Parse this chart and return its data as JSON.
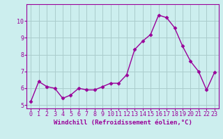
{
  "x": [
    0,
    1,
    2,
    3,
    4,
    5,
    6,
    7,
    8,
    9,
    10,
    11,
    12,
    13,
    14,
    15,
    16,
    17,
    18,
    19,
    20,
    21,
    22,
    23
  ],
  "y": [
    5.2,
    6.4,
    6.1,
    6.0,
    5.4,
    5.6,
    6.0,
    5.9,
    5.9,
    6.1,
    6.3,
    6.3,
    6.8,
    8.3,
    8.8,
    9.2,
    10.35,
    10.2,
    9.6,
    8.5,
    7.6,
    7.0,
    5.9,
    6.95
  ],
  "xlabel": "Windchill (Refroidissement éolien,°C)",
  "line_color": "#990099",
  "marker_color": "#990099",
  "bg_color": "#cceeee",
  "grid_color": "#aacccc",
  "axes_color": "#990099",
  "tick_label_color": "#990099",
  "ylim": [
    4.8,
    11.0
  ],
  "xlim": [
    -0.5,
    23.5
  ],
  "yticks": [
    5,
    6,
    7,
    8,
    9,
    10
  ],
  "xticks": [
    0,
    1,
    2,
    3,
    4,
    5,
    6,
    7,
    8,
    9,
    10,
    11,
    12,
    13,
    14,
    15,
    16,
    17,
    18,
    19,
    20,
    21,
    22,
    23
  ],
  "xlabel_fontsize": 6.5,
  "tick_fontsize": 6.0,
  "linewidth": 1.0,
  "markersize": 2.5
}
